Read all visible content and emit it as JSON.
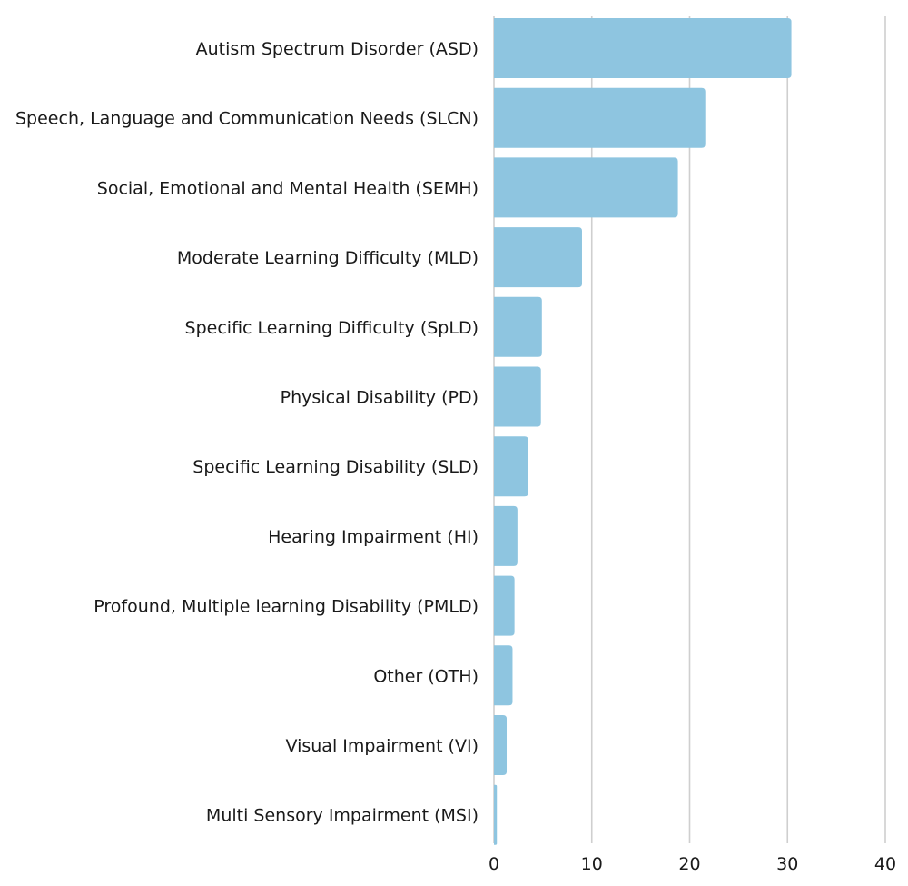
{
  "chart_data": {
    "type": "bar",
    "orientation": "horizontal",
    "title": "",
    "xlabel": "",
    "ylabel": "",
    "categories": [
      "Autism Spectrum Disorder (ASD)",
      "Speech, Language and Communication Needs (SLCN)",
      "Social, Emotional and Mental Health (SEMH)",
      "Moderate Learning Difficulty (MLD)",
      "Specific Learning Difficulty (SpLD)",
      "Physical Disability (PD)",
      "Specific Learning Disability (SLD)",
      "Hearing Impairment (HI)",
      "Profound, Multiple learning Disability (PMLD)",
      "Other (OTH)",
      "Visual Impairment (VI)",
      "Multi Sensory Impairment (MSI)"
    ],
    "values": [
      30.4,
      21.6,
      18.8,
      9.0,
      4.9,
      4.8,
      3.5,
      2.4,
      2.1,
      1.9,
      1.3,
      0.3
    ],
    "xlim": [
      0,
      40
    ],
    "xticks": [
      0,
      10,
      20,
      30,
      40
    ],
    "grid": "vertical",
    "legend": "none",
    "colors": {
      "bar": "#8ec5e0",
      "grid": "#cfcfcf",
      "text": "#1a1a1a"
    }
  }
}
